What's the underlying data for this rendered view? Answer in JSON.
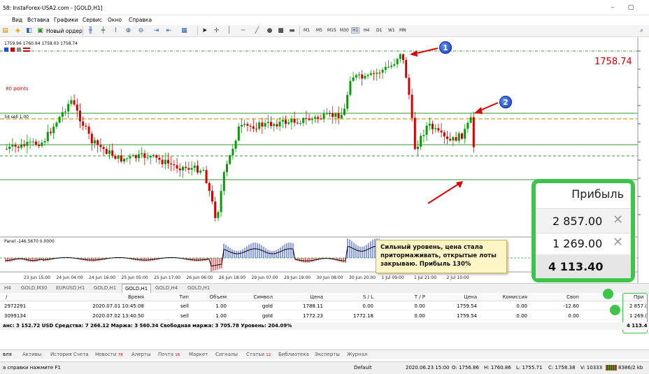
{
  "window": {
    "title": "58: InstaForex-USA2.com - [GOLD,H1]",
    "min": "–",
    "restore": "▢"
  },
  "menu": [
    "Вид",
    "Вставка",
    "Графики",
    "Сервис",
    "Окно",
    "Справка"
  ],
  "toolbar": {
    "new_order": "Новый ордер",
    "timeframes": [
      "M1",
      "M5",
      "M15",
      "M30",
      "H1",
      "H4",
      "D1",
      "W1",
      "MN"
    ],
    "active_timeframe": "H1"
  },
  "chart": {
    "ohlc_header": "1759.96 1760.94 1758.03 1758.74",
    "current_price": "1758.74",
    "points_label": "80 points",
    "level_label": "34 sell 1.00",
    "indicator_label": "Panel -146.5670 0.0000",
    "annotation_1": "1",
    "annotation_2": "2",
    "callout_text": "Сильный уровень, цена стала притормаживать, открытые лоты закрываю. Прибыль 130%",
    "time_ticks": [
      "23 Jun 15:00",
      "24 Jun 04:00",
      "24 Jun 16:00",
      "25 Jun 05:00",
      "25 Jun 17:00",
      "26 Jun 06:00",
      "26 Jun 18:00",
      "29 Jun 07:00",
      "29 Jun 19:00",
      "30 Jun 08:00",
      "30 Jun 20:00",
      "1 Jul 09:00",
      "1 Jul 21:00",
      "2 Jul 10:00"
    ],
    "colors": {
      "bull": "#00a000",
      "bear": "#d40000",
      "level": "#2e9a2e",
      "price": "#d40000"
    }
  },
  "chart_tabs": [
    "H4",
    "GOLD,M30",
    "EURUSD,H1",
    "GOLD,H1",
    "GOLD,H1",
    "GOLD,H4",
    "GOLD,H1"
  ],
  "active_chart_tab": 4,
  "terminal": {
    "headers": {
      "order": "/",
      "time": "Время",
      "type": "Тип",
      "volume": "Объем",
      "symbol": "Символ",
      "price": "Цена",
      "sl": "S / L",
      "tp": "T / P",
      "cur_price": "Цена",
      "commission": "Комиссия",
      "swap": "Своп",
      "profit": "При"
    },
    "rows": [
      {
        "order": "2972291",
        "time": "2020.07.01 10:45:08",
        "type": "sell",
        "volume": "1.00",
        "symbol": "gold",
        "price": "1788.11",
        "sl": "0.00",
        "tp": "0.00",
        "cur_price": "1759.54",
        "commission": "0.00",
        "swap": "-12.60",
        "profit": "2 857.("
      },
      {
        "order": "3099134",
        "time": "2020.07.02 13:40:50",
        "type": "sell",
        "volume": "1.00",
        "symbol": "gold",
        "price": "1772.23",
        "sl": "1772.18",
        "tp": "0.00",
        "cur_price": "1759.54",
        "commission": "0.00",
        "swap": "0.00",
        "profit": "1 269.("
      }
    ],
    "balance_line": "анс: 3 152.72 USD  Средства: 7 266.12  Маржа: 3 560.34  Свободная маржа: 3 705.78  Уровень: 204.09%",
    "balance_profit": "4 113.4"
  },
  "bottom_tabs": [
    {
      "label": "вля"
    },
    {
      "label": "Активы"
    },
    {
      "label": "История Счета"
    },
    {
      "label": "Новости",
      "badge": "78"
    },
    {
      "label": "Алерты"
    },
    {
      "label": "Почта",
      "badge": "16"
    },
    {
      "label": "Маркет"
    },
    {
      "label": "Сигналы"
    },
    {
      "label": "Статьи",
      "badge": "12"
    },
    {
      "label": "Библиотека"
    },
    {
      "label": "Эксперты"
    },
    {
      "label": "Журнал"
    }
  ],
  "status": {
    "help": "а справки нажмите F1",
    "profile": "Default",
    "datetime": "2020.06.23 15:00",
    "open": "O: 1756.86",
    "high": "H: 1760.86",
    "low": "L: 1755.71",
    "close": "C: 1758.38",
    "volume": "V: 10333",
    "traffic": "8386/2 kb"
  },
  "profit_panel": {
    "title": "Прибыль",
    "value1": "2 857.00",
    "value2": "1 269.00",
    "total": "4 113.40",
    "close_symbol": "✕"
  }
}
